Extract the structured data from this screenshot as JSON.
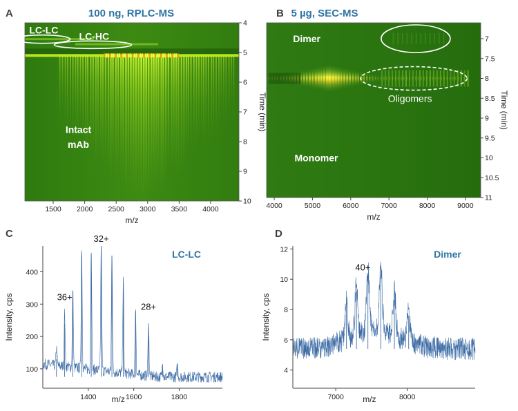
{
  "chart_data": [
    {
      "panel": "A",
      "type": "heatmap",
      "title": "100 ng, RPLC-MS",
      "xlabel": "m/z",
      "ylabel": "Time (min)",
      "xlim": [
        1050,
        4450
      ],
      "ylim": [
        4,
        10
      ],
      "x_ticks": [
        1500,
        2000,
        2500,
        3000,
        3500,
        4000
      ],
      "y_ticks": [
        4,
        5,
        6,
        7,
        8,
        9,
        10
      ],
      "main_band_time": 5.1,
      "annotations": [
        {
          "text": "LC-LC",
          "x": 1350,
          "y": 4.55,
          "circled": true
        },
        {
          "text": "LC-HC",
          "x": 2150,
          "y": 4.75,
          "circled": true
        },
        {
          "text": "Intact",
          "x": 1900,
          "y": 7.9
        },
        {
          "text": "mAb",
          "x": 1900,
          "y": 8.4
        }
      ]
    },
    {
      "panel": "B",
      "type": "heatmap",
      "title": "5 µg, SEC-MS",
      "xlabel": "m/z",
      "ylabel": "Time (min)",
      "xlim": [
        3800,
        9400
      ],
      "ylim": [
        6.6,
        11
      ],
      "x_ticks": [
        4000,
        5000,
        6000,
        7000,
        8000,
        9000
      ],
      "y_ticks": [
        7,
        7.5,
        8,
        8.5,
        9,
        9.5,
        10,
        10.5,
        11
      ],
      "main_band_time": 8.0,
      "annotations": [
        {
          "text": "Dimer",
          "x": 4850,
          "y": 7.0
        },
        {
          "text": "Oligomers",
          "x": 7550,
          "y": 8.5
        },
        {
          "text": "Monomer",
          "x": 5100,
          "y": 10.0
        }
      ]
    },
    {
      "panel": "C",
      "type": "line",
      "title": "LC-LC",
      "xlabel": "m/z",
      "ylabel": "Intensity, cps",
      "xlim": [
        1200,
        1990
      ],
      "ylim": [
        40,
        480
      ],
      "x_ticks": [
        1400,
        1600,
        1800
      ],
      "y_ticks": [
        100,
        200,
        300,
        400
      ],
      "peaks": [
        {
          "x": 1260,
          "y": 130
        },
        {
          "x": 1296,
          "y": 240
        },
        {
          "x": 1332,
          "y": 322
        },
        {
          "x": 1371,
          "y": 450
        },
        {
          "x": 1413,
          "y": 455
        },
        {
          "x": 1457,
          "y": 478
        },
        {
          "x": 1504,
          "y": 450
        },
        {
          "x": 1554,
          "y": 365
        },
        {
          "x": 1608,
          "y": 278
        },
        {
          "x": 1665,
          "y": 240
        },
        {
          "x": 1727,
          "y": 115
        },
        {
          "x": 1792,
          "y": 110
        }
      ],
      "baseline": 75,
      "charge_labels": [
        {
          "text": "36+",
          "x": 1296,
          "y": 300
        },
        {
          "text": "32+",
          "x": 1457,
          "y": 480
        },
        {
          "text": "28+",
          "x": 1665,
          "y": 270
        }
      ]
    },
    {
      "panel": "D",
      "type": "line",
      "title": "Dimer",
      "xlabel": "m/z",
      "ylabel": "Intensity, cps",
      "xlim": [
        6400,
        8950
      ],
      "ylim": [
        2.8,
        12.2
      ],
      "x_ticks": [
        7000,
        8000
      ],
      "y_ticks": [
        4,
        6,
        8,
        10,
        12
      ],
      "peaks": [
        {
          "x": 7150,
          "y": 8.0
        },
        {
          "x": 7290,
          "y": 9.2
        },
        {
          "x": 7450,
          "y": 10.3
        },
        {
          "x": 7630,
          "y": 10.3
        },
        {
          "x": 7820,
          "y": 8.6
        },
        {
          "x": 8020,
          "y": 7.6
        }
      ],
      "baseline": 5.4,
      "charge_labels": [
        {
          "text": "40+",
          "x": 7380,
          "y": 10.3
        }
      ]
    }
  ]
}
